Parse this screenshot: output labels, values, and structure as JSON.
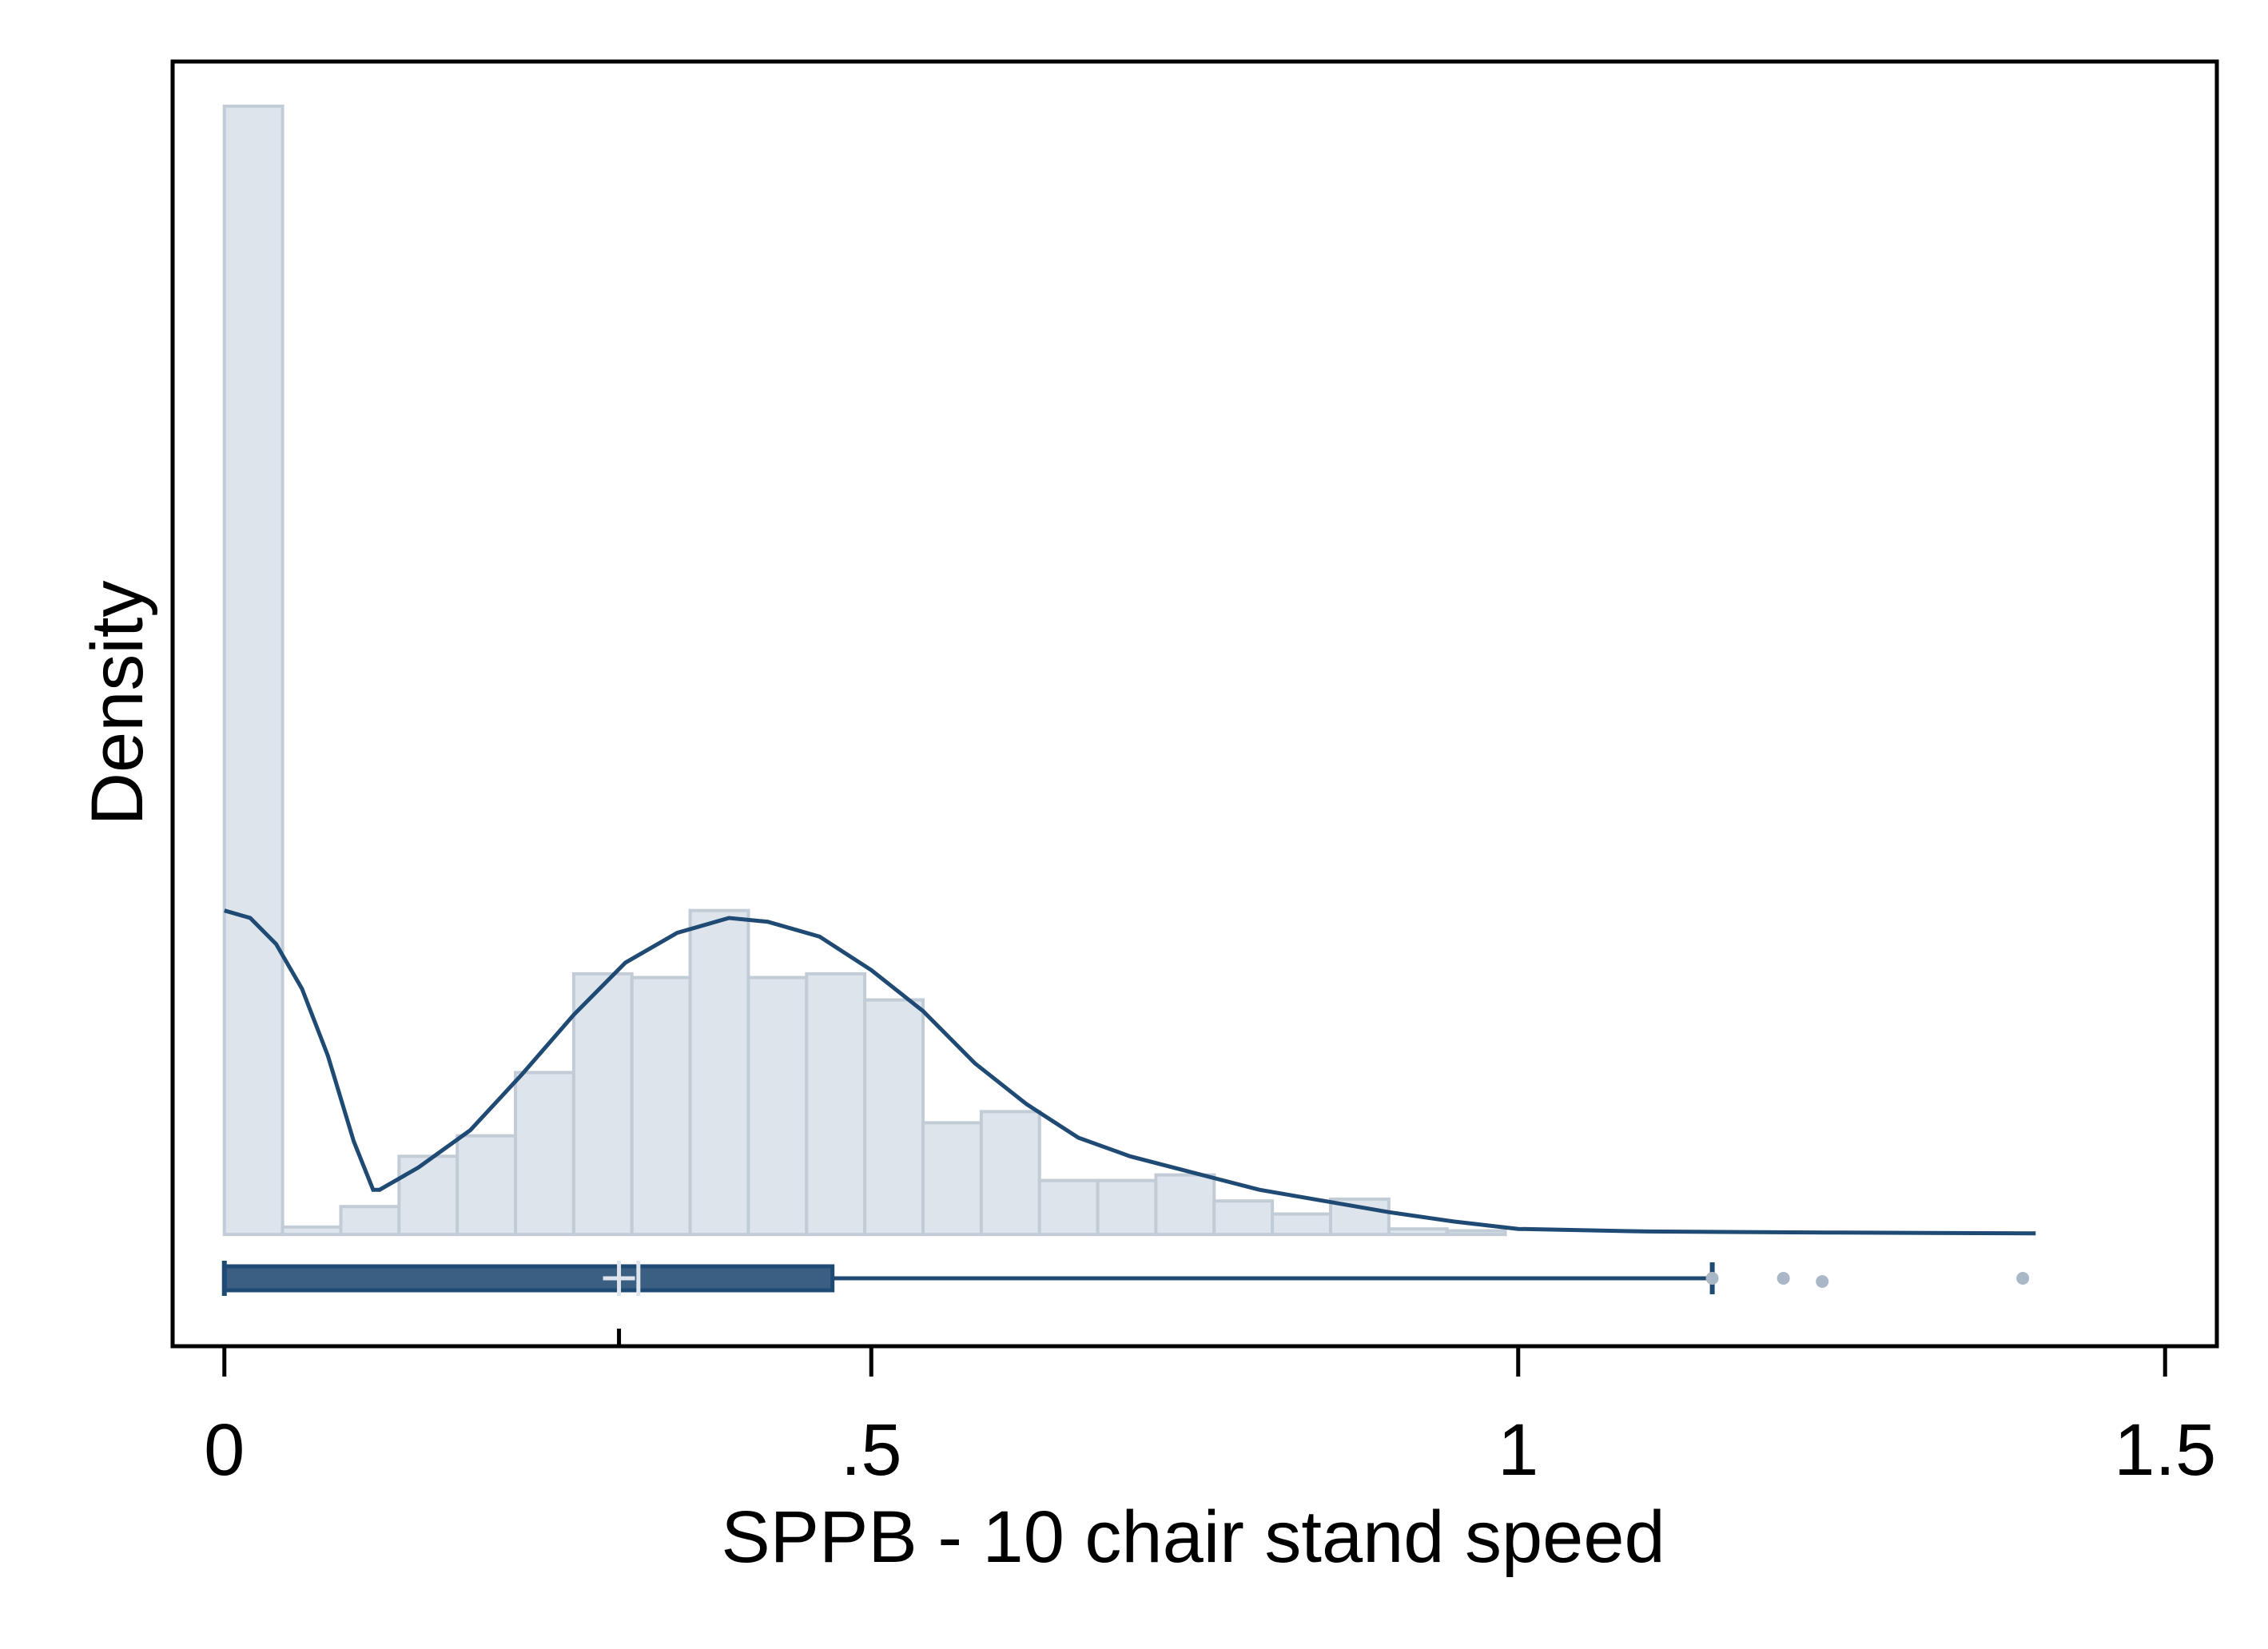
{
  "chart_data": {
    "type": "histogram",
    "title": "",
    "xlabel": "SPPB - 10 chair stand speed",
    "ylabel": "Density",
    "xlim": [
      -0.04,
      1.54
    ],
    "ylim": [
      -0.3,
      3.15
    ],
    "x_ticks": [
      {
        "value": 0,
        "label": "0"
      },
      {
        "value": 0.5,
        "label": ".5"
      },
      {
        "value": 1,
        "label": "1"
      },
      {
        "value": 1.5,
        "label": "1.5"
      }
    ],
    "grid": false,
    "legend": "none",
    "colors": {
      "bar_fill": "#dde4eb",
      "bar_stroke": "#c2ccd6",
      "line": "#1f4a73",
      "box_fill": "#3b5f82",
      "outlier": "#a9b7c6",
      "mean_marker": "#dde4eb"
    },
    "bin_width": 0.045,
    "bins": [
      {
        "x0": 0.0,
        "density": 3.03
      },
      {
        "x0": 0.045,
        "density": 0.02
      },
      {
        "x0": 0.09,
        "density": 0.075
      },
      {
        "x0": 0.135,
        "density": 0.21
      },
      {
        "x0": 0.18,
        "density": 0.265
      },
      {
        "x0": 0.225,
        "density": 0.435
      },
      {
        "x0": 0.27,
        "density": 0.7
      },
      {
        "x0": 0.315,
        "density": 0.69
      },
      {
        "x0": 0.36,
        "density": 0.87
      },
      {
        "x0": 0.405,
        "density": 0.69
      },
      {
        "x0": 0.45,
        "density": 0.7
      },
      {
        "x0": 0.495,
        "density": 0.63
      },
      {
        "x0": 0.54,
        "density": 0.3
      },
      {
        "x0": 0.585,
        "density": 0.33
      },
      {
        "x0": 0.63,
        "density": 0.145
      },
      {
        "x0": 0.675,
        "density": 0.145
      },
      {
        "x0": 0.72,
        "density": 0.16
      },
      {
        "x0": 0.765,
        "density": 0.09
      },
      {
        "x0": 0.81,
        "density": 0.055
      },
      {
        "x0": 0.855,
        "density": 0.095
      },
      {
        "x0": 0.9,
        "density": 0.015
      },
      {
        "x0": 0.945,
        "density": 0.01
      }
    ],
    "density_curve": [
      [
        0.0,
        0.87
      ],
      [
        0.02,
        0.85
      ],
      [
        0.04,
        0.78
      ],
      [
        0.06,
        0.66
      ],
      [
        0.08,
        0.48
      ],
      [
        0.1,
        0.25
      ],
      [
        0.115,
        0.12
      ],
      [
        0.12,
        0.12
      ],
      [
        0.15,
        0.18
      ],
      [
        0.19,
        0.28
      ],
      [
        0.23,
        0.43
      ],
      [
        0.27,
        0.59
      ],
      [
        0.31,
        0.73
      ],
      [
        0.35,
        0.81
      ],
      [
        0.39,
        0.85
      ],
      [
        0.42,
        0.84
      ],
      [
        0.46,
        0.8
      ],
      [
        0.5,
        0.71
      ],
      [
        0.54,
        0.6
      ],
      [
        0.58,
        0.46
      ],
      [
        0.62,
        0.35
      ],
      [
        0.66,
        0.26
      ],
      [
        0.7,
        0.21
      ],
      [
        0.75,
        0.165
      ],
      [
        0.8,
        0.12
      ],
      [
        0.85,
        0.09
      ],
      [
        0.9,
        0.06
      ],
      [
        0.95,
        0.035
      ],
      [
        1.0,
        0.015
      ],
      [
        1.1,
        0.008
      ],
      [
        1.25,
        0.005
      ],
      [
        1.4,
        0.003
      ]
    ],
    "boxplot": {
      "min": 0,
      "q1": 0,
      "median": 0.32,
      "mean": 0.305,
      "q3": 0.47,
      "whisker_high": 1.15,
      "outliers": [
        1.15,
        1.205,
        1.235,
        1.39
      ]
    }
  }
}
